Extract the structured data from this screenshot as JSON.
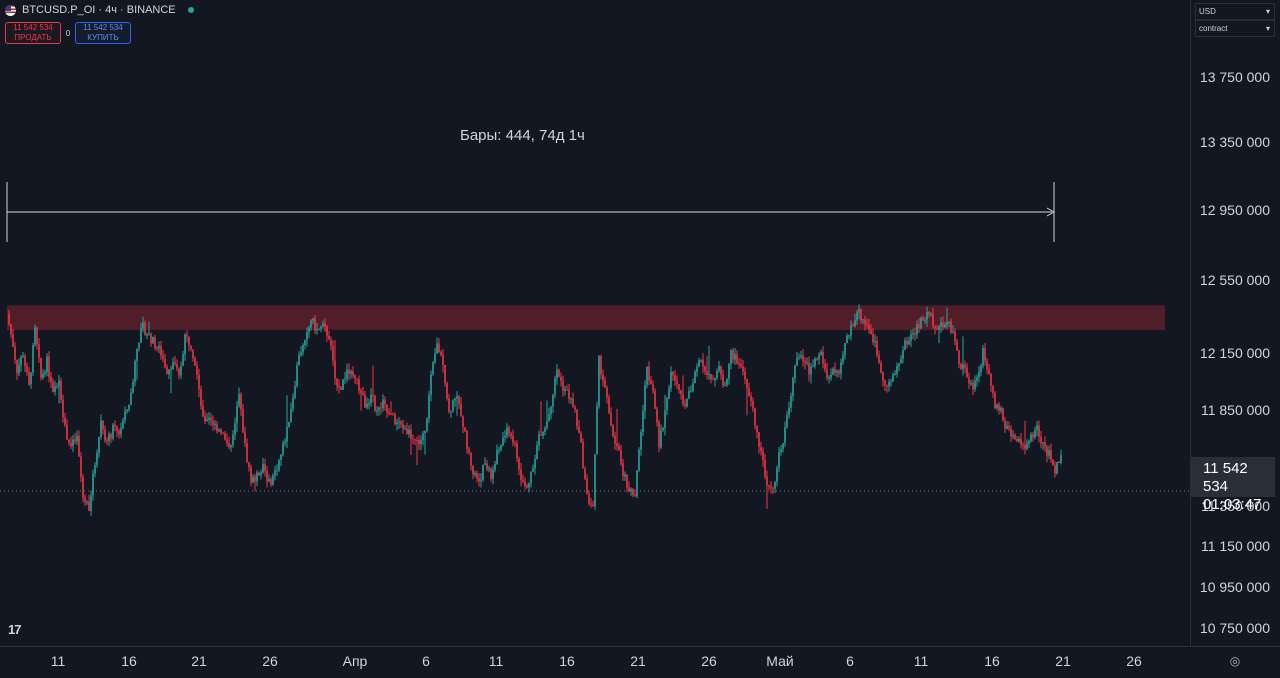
{
  "header": {
    "symbol": "BTCUSD.P_OI · 4ч · BINANCE",
    "sell_price": "11 542 534",
    "sell_label": "ПРОДАТЬ",
    "spread": "0",
    "buy_price": "11 542 534",
    "buy_label": "КУПИТЬ"
  },
  "measure": {
    "label": "Бары: 444, 74д 1ч"
  },
  "price_axis": {
    "currency_select": "USD",
    "unit_select": "contract",
    "ticks": [
      "13 750 000",
      "13 350 000",
      "12 950 000",
      "12 550 000",
      "12 150 000",
      "11 850 000",
      "11 350 000",
      "11 150 000",
      "10 950 000",
      "10 750 000"
    ],
    "current_price": "11 542 534",
    "countdown": "01:03:47"
  },
  "time_axis": {
    "ticks": [
      "11",
      "16",
      "21",
      "26",
      "Апр",
      "6",
      "11",
      "16",
      "21",
      "26",
      "Май",
      "6",
      "11",
      "16",
      "21",
      "26"
    ]
  },
  "logo": "17",
  "colors": {
    "background": "#131722",
    "up": "#26a69a",
    "down": "#f23645",
    "zone": "#5c1e2a"
  },
  "chart_data": {
    "type": "candlestick",
    "series_name": "BTCUSD.P_OI",
    "ylim": [
      10650000,
      13900000
    ],
    "current": 11542534,
    "resistance_zone": [
      12285000,
      12430000
    ],
    "path": [
      [
        0,
        12380000
      ],
      [
        6,
        12200000
      ],
      [
        10,
        12050000
      ],
      [
        16,
        12150000
      ],
      [
        22,
        11950000
      ],
      [
        28,
        12280000
      ],
      [
        34,
        12000000
      ],
      [
        40,
        12100000
      ],
      [
        46,
        11900000
      ],
      [
        52,
        12000000
      ],
      [
        58,
        11700000
      ],
      [
        64,
        11600000
      ],
      [
        70,
        11650000
      ],
      [
        76,
        11300000
      ],
      [
        82,
        11250000
      ],
      [
        88,
        11500000
      ],
      [
        94,
        11750000
      ],
      [
        100,
        11620000
      ],
      [
        106,
        11700000
      ],
      [
        112,
        11680000
      ],
      [
        118,
        11780000
      ],
      [
        124,
        11900000
      ],
      [
        130,
        12200000
      ],
      [
        136,
        12300000
      ],
      [
        142,
        12250000
      ],
      [
        148,
        12200000
      ],
      [
        154,
        12150000
      ],
      [
        160,
        12050000
      ],
      [
        166,
        12100000
      ],
      [
        172,
        12000000
      ],
      [
        178,
        12250000
      ],
      [
        184,
        12200000
      ],
      [
        190,
        12050000
      ],
      [
        196,
        11750000
      ],
      [
        202,
        11780000
      ],
      [
        208,
        11720000
      ],
      [
        214,
        11700000
      ],
      [
        220,
        11600000
      ],
      [
        226,
        11650000
      ],
      [
        232,
        11900000
      ],
      [
        238,
        11600000
      ],
      [
        244,
        11400000
      ],
      [
        250,
        11420000
      ],
      [
        256,
        11500000
      ],
      [
        262,
        11380000
      ],
      [
        268,
        11450000
      ],
      [
        274,
        11550000
      ],
      [
        280,
        11700000
      ],
      [
        286,
        11900000
      ],
      [
        292,
        12150000
      ],
      [
        298,
        12200000
      ],
      [
        304,
        12350000
      ],
      [
        310,
        12280000
      ],
      [
        316,
        12300000
      ],
      [
        322,
        12250000
      ],
      [
        328,
        12000000
      ],
      [
        334,
        11950000
      ],
      [
        340,
        12050000
      ],
      [
        346,
        12000000
      ],
      [
        352,
        11950000
      ],
      [
        358,
        11850000
      ],
      [
        364,
        11900000
      ],
      [
        370,
        11800000
      ],
      [
        376,
        11850000
      ],
      [
        382,
        11780000
      ],
      [
        388,
        11750000
      ],
      [
        394,
        11720000
      ],
      [
        400,
        11700000
      ],
      [
        406,
        11650000
      ],
      [
        412,
        11620000
      ],
      [
        418,
        11680000
      ],
      [
        424,
        12000000
      ],
      [
        430,
        12200000
      ],
      [
        436,
        12100000
      ],
      [
        442,
        11800000
      ],
      [
        448,
        11900000
      ],
      [
        454,
        11800000
      ],
      [
        460,
        11600000
      ],
      [
        466,
        11450000
      ],
      [
        472,
        11400000
      ],
      [
        478,
        11500000
      ],
      [
        484,
        11420000
      ],
      [
        490,
        11550000
      ],
      [
        496,
        11650000
      ],
      [
        502,
        11700000
      ],
      [
        508,
        11600000
      ],
      [
        514,
        11400000
      ],
      [
        520,
        11350000
      ],
      [
        526,
        11500000
      ],
      [
        532,
        11650000
      ],
      [
        538,
        11700000
      ],
      [
        544,
        11850000
      ],
      [
        550,
        12050000
      ],
      [
        556,
        11950000
      ],
      [
        562,
        11900000
      ],
      [
        568,
        11800000
      ],
      [
        574,
        11600000
      ],
      [
        580,
        11300000
      ],
      [
        586,
        11250000
      ],
      [
        592,
        12100000
      ],
      [
        598,
        11950000
      ],
      [
        604,
        11700000
      ],
      [
        610,
        11600000
      ],
      [
        616,
        11450000
      ],
      [
        622,
        11350000
      ],
      [
        628,
        11300000
      ],
      [
        634,
        11700000
      ],
      [
        640,
        12050000
      ],
      [
        646,
        11950000
      ],
      [
        652,
        11600000
      ],
      [
        658,
        11800000
      ],
      [
        664,
        12050000
      ],
      [
        670,
        11950000
      ],
      [
        676,
        11850000
      ],
      [
        682,
        11900000
      ],
      [
        688,
        12050000
      ],
      [
        694,
        12100000
      ],
      [
        700,
        12050000
      ],
      [
        706,
        12000000
      ],
      [
        712,
        12050000
      ],
      [
        718,
        11950000
      ],
      [
        724,
        12150000
      ],
      [
        730,
        12100000
      ],
      [
        736,
        12050000
      ],
      [
        742,
        11900000
      ],
      [
        748,
        11750000
      ],
      [
        754,
        11550000
      ],
      [
        760,
        11400000
      ],
      [
        766,
        11350000
      ],
      [
        772,
        11550000
      ],
      [
        778,
        11700000
      ],
      [
        784,
        11900000
      ],
      [
        790,
        12150000
      ],
      [
        796,
        12100000
      ],
      [
        802,
        12050000
      ],
      [
        808,
        12100000
      ],
      [
        814,
        12150000
      ],
      [
        820,
        12000000
      ],
      [
        826,
        12050000
      ],
      [
        832,
        12000000
      ],
      [
        838,
        12200000
      ],
      [
        844,
        12300000
      ],
      [
        850,
        12400000
      ],
      [
        856,
        12350000
      ],
      [
        862,
        12300000
      ],
      [
        868,
        12200000
      ],
      [
        874,
        12050000
      ],
      [
        880,
        11950000
      ],
      [
        886,
        12000000
      ],
      [
        892,
        12100000
      ],
      [
        898,
        12200000
      ],
      [
        904,
        12250000
      ],
      [
        910,
        12300000
      ],
      [
        916,
        12350000
      ],
      [
        922,
        12380000
      ],
      [
        928,
        12320000
      ],
      [
        934,
        12300000
      ],
      [
        940,
        12350000
      ],
      [
        946,
        12250000
      ],
      [
        952,
        12100000
      ],
      [
        958,
        12050000
      ],
      [
        964,
        11950000
      ],
      [
        970,
        12000000
      ],
      [
        976,
        12150000
      ],
      [
        982,
        12050000
      ],
      [
        988,
        11850000
      ],
      [
        994,
        11800000
      ],
      [
        1000,
        11700000
      ],
      [
        1006,
        11650000
      ],
      [
        1012,
        11620000
      ],
      [
        1018,
        11600000
      ],
      [
        1024,
        11650000
      ],
      [
        1030,
        11700000
      ],
      [
        1036,
        11600000
      ],
      [
        1042,
        11550000
      ],
      [
        1048,
        11460000
      ],
      [
        1054,
        11542534
      ]
    ]
  }
}
